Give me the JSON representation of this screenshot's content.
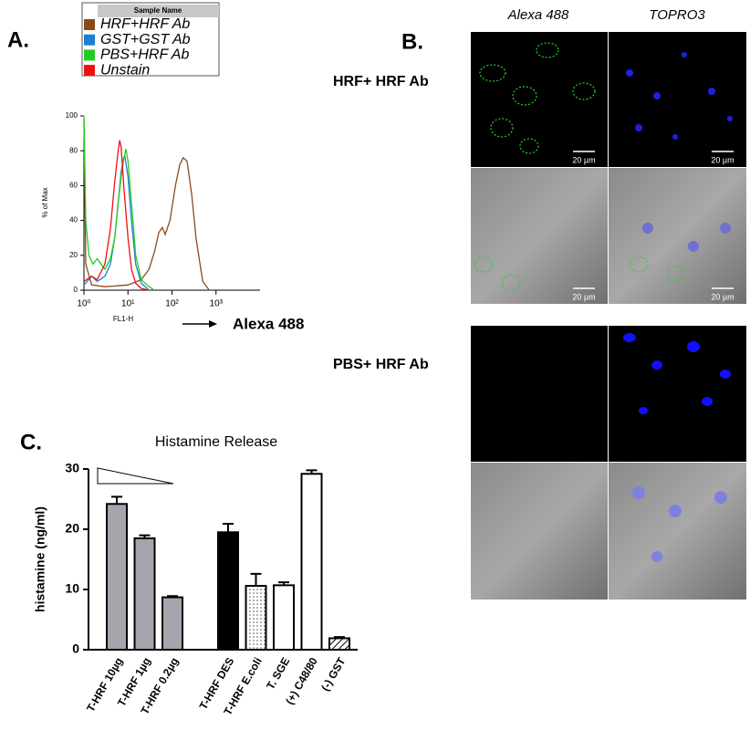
{
  "panels": {
    "a": "A.",
    "b": "B.",
    "c": "C."
  },
  "microscopy": {
    "columns": [
      "Alexa 488",
      "TOPRO3"
    ],
    "rows": [
      "HRF+ HRF Ab",
      "PBS+ HRF Ab"
    ],
    "scale_bar": "20 µm"
  },
  "chart_data": [
    {
      "type": "line",
      "legend_title": "Sample Name",
      "xlabel": "FL1-H",
      "ylabel": "% of Max",
      "annotation": "Alexa 488",
      "xlog": true,
      "xlim": [
        1,
        10000
      ],
      "xticks": [
        {
          "value": 1,
          "label": "10⁰"
        },
        {
          "value": 10,
          "label": "10¹"
        },
        {
          "value": 100,
          "label": "10²"
        },
        {
          "value": 1000,
          "label": "10³"
        }
      ],
      "ylim": [
        0,
        100
      ],
      "yticks": [
        0,
        20,
        40,
        60,
        80,
        100
      ],
      "series": [
        {
          "name": "HRF+HRF Ab",
          "color": "#8b4a1c",
          "x": [
            1,
            1.1,
            1.5,
            3,
            10,
            20,
            30,
            40,
            50,
            60,
            70,
            90,
            120,
            150,
            180,
            220,
            280,
            350,
            500,
            700
          ],
          "values": [
            98,
            15,
            3,
            2,
            3,
            6,
            12,
            22,
            33,
            36,
            32,
            40,
            60,
            72,
            76,
            74,
            55,
            30,
            5,
            0
          ]
        },
        {
          "name": "GST+GST Ab",
          "color": "#1e7fd0",
          "x": [
            1,
            1.5,
            2,
            3,
            4,
            5,
            6,
            7,
            8,
            8.5,
            10,
            12,
            15,
            20,
            30
          ],
          "values": [
            3,
            8,
            5,
            8,
            15,
            30,
            50,
            68,
            76,
            77,
            65,
            40,
            15,
            4,
            0
          ]
        },
        {
          "name": "PBS+HRF Ab",
          "color": "#22cc22",
          "x": [
            1,
            1.1,
            1.3,
            1.6,
            2,
            3,
            4,
            5,
            6,
            7,
            8,
            9,
            10,
            12,
            15,
            20,
            30,
            40
          ],
          "values": [
            100,
            40,
            20,
            15,
            18,
            12,
            18,
            30,
            50,
            65,
            75,
            81,
            74,
            50,
            20,
            6,
            2,
            0
          ]
        },
        {
          "name": "Unstain",
          "color": "#ee1111",
          "x": [
            1,
            1.5,
            2,
            3,
            4,
            5,
            6,
            6.5,
            7,
            8,
            10,
            12,
            15,
            20,
            30
          ],
          "values": [
            5,
            8,
            6,
            15,
            35,
            62,
            80,
            86,
            82,
            60,
            30,
            12,
            4,
            1,
            0
          ]
        }
      ]
    },
    {
      "type": "bar",
      "title": "Histamine Release",
      "ylabel": "histamine (ng/ml)",
      "categories": [
        "T-HRF 10µg",
        "T-HRF 1µg",
        "T-HRF 0.2µg",
        null,
        "T-HRF DES",
        "T-HRF E.coli",
        "T. SGE",
        "(+) C48/80",
        "(-) GST"
      ],
      "values": [
        24.2,
        18.5,
        8.7,
        null,
        19.5,
        10.6,
        10.7,
        29.2,
        1.9
      ],
      "errors": [
        1.2,
        0.5,
        0.2,
        null,
        1.4,
        2.0,
        0.5,
        0.6,
        0.2
      ],
      "fills": [
        "#a5a5ad",
        "#a5a5ad",
        "#a5a5ad",
        null,
        "#000000",
        "dots",
        "#ffffff",
        "#ffffff",
        "hatch"
      ],
      "ylim": [
        0,
        30
      ],
      "yticks": [
        0,
        10,
        20,
        30
      ]
    }
  ]
}
